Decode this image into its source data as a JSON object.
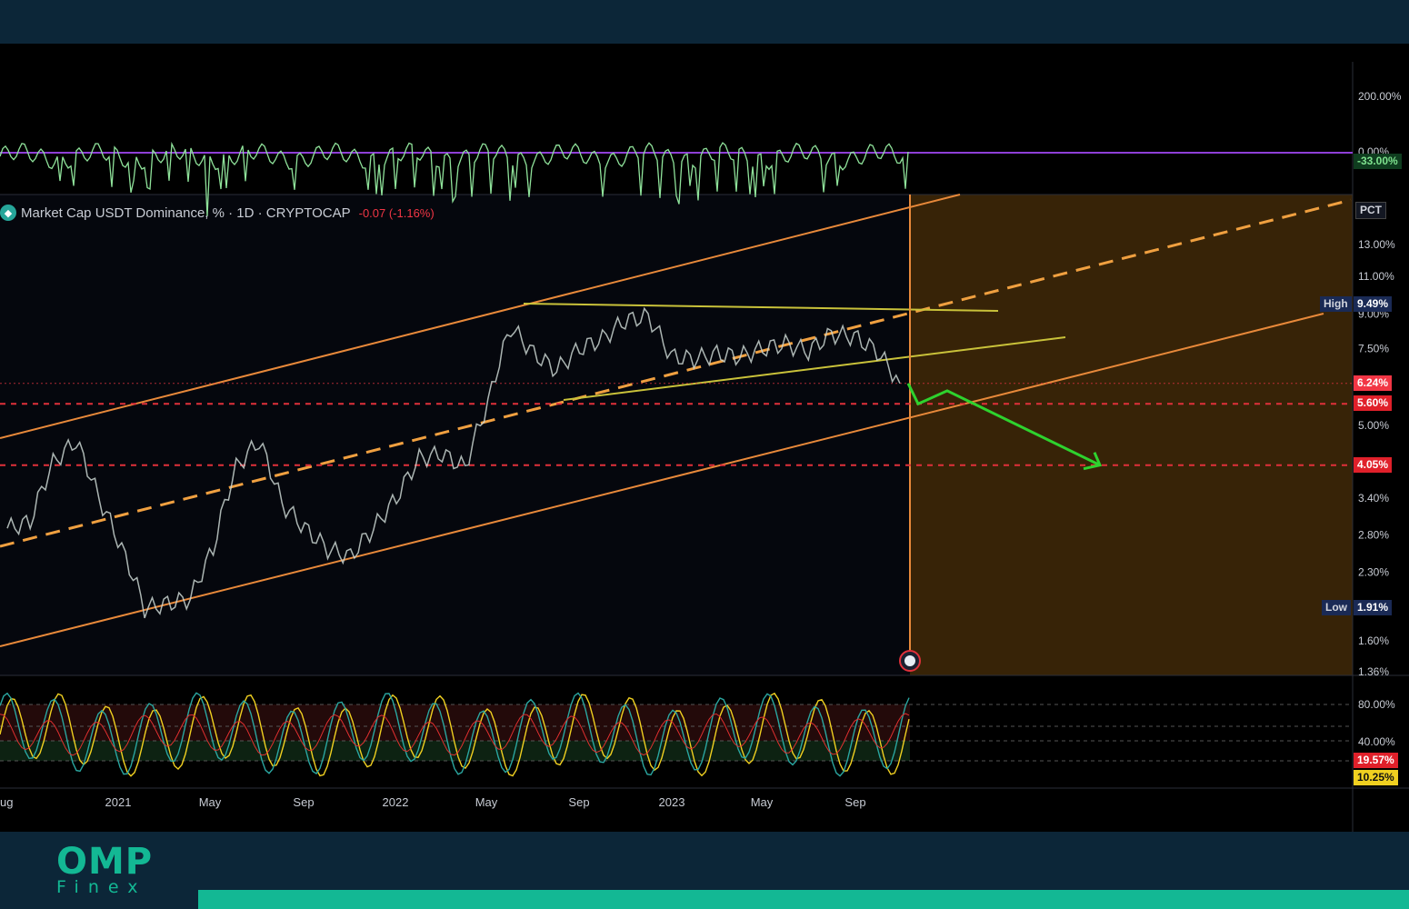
{
  "brand": {
    "name": "OMP",
    "sub": "Finex",
    "colors": {
      "brand": "#13b894",
      "band": "#0c2638"
    }
  },
  "legend": {
    "symbol_icon": "tether-icon",
    "title": "Market Cap USDT Dominance, % · 1D · CRYPTOCAP",
    "change": "-0.07 (-1.16%)"
  },
  "scale_mode": "PCT",
  "top_panel": {
    "ticks": [
      "200.00%",
      "0.00%"
    ],
    "value_badge": "-33.00%"
  },
  "main_panel": {
    "ticks": [
      "13.00%",
      "11.00%",
      "9.00%",
      "7.50%",
      "5.00%",
      "3.40%",
      "2.80%",
      "2.30%",
      "1.60%",
      "1.36%"
    ],
    "high": {
      "label": "High",
      "value": "9.49%"
    },
    "low": {
      "label": "Low",
      "value": "1.91%"
    },
    "current": "6.24%",
    "levels": [
      "5.60%",
      "4.05%"
    ],
    "event_icon": "us-flag-icon"
  },
  "bottom_panel": {
    "ticks": [
      "80.00%",
      "40.00%"
    ],
    "badges": [
      "19.57%",
      "10.25%"
    ]
  },
  "time_axis": [
    "ug",
    "2021",
    "May",
    "Sep",
    "2022",
    "May",
    "Sep",
    "2023",
    "May",
    "Sep"
  ],
  "chart_data": {
    "type": "line",
    "title": "Market Cap USDT Dominance, % · 1D · CRYPTOCAP",
    "x": [
      "2020-08",
      "2020-09",
      "2020-10",
      "2020-11",
      "2020-12",
      "2021-01",
      "2021-02",
      "2021-03",
      "2021-04",
      "2021-05",
      "2021-06",
      "2021-07",
      "2021-08",
      "2021-09",
      "2021-10",
      "2021-11",
      "2021-12",
      "2022-01",
      "2022-02",
      "2022-03",
      "2022-04",
      "2022-05",
      "2022-06",
      "2022-07",
      "2022-08",
      "2022-09",
      "2022-10",
      "2022-11",
      "2022-12",
      "2023-01",
      "2023-02",
      "2023-03",
      "2023-04",
      "2023-05",
      "2023-06",
      "2023-07",
      "2023-08",
      "2023-09",
      "2023-10",
      "2023-11"
    ],
    "series": [
      {
        "values": [
          2.9,
          3.0,
          4.1,
          4.6,
          3.4,
          2.6,
          1.9,
          1.95,
          2.0,
          2.6,
          4.0,
          4.6,
          3.3,
          2.9,
          2.6,
          2.5,
          2.9,
          3.4,
          4.2,
          4.3,
          4.0,
          5.6,
          8.4,
          7.3,
          6.7,
          7.5,
          7.9,
          8.7,
          8.9,
          7.2,
          7.1,
          7.3,
          7.2,
          7.5,
          7.7,
          7.4,
          8.1,
          8.0,
          7.4,
          6.24
        ]
      }
    ],
    "ylim": [
      1.36,
      13.0
    ],
    "y_scale": "log",
    "high": 9.49,
    "low": 1.91,
    "last": 6.24,
    "horizontal_levels": [
      5.6,
      4.05
    ],
    "projection": [
      6.24,
      5.6,
      6.0,
      4.05
    ]
  }
}
